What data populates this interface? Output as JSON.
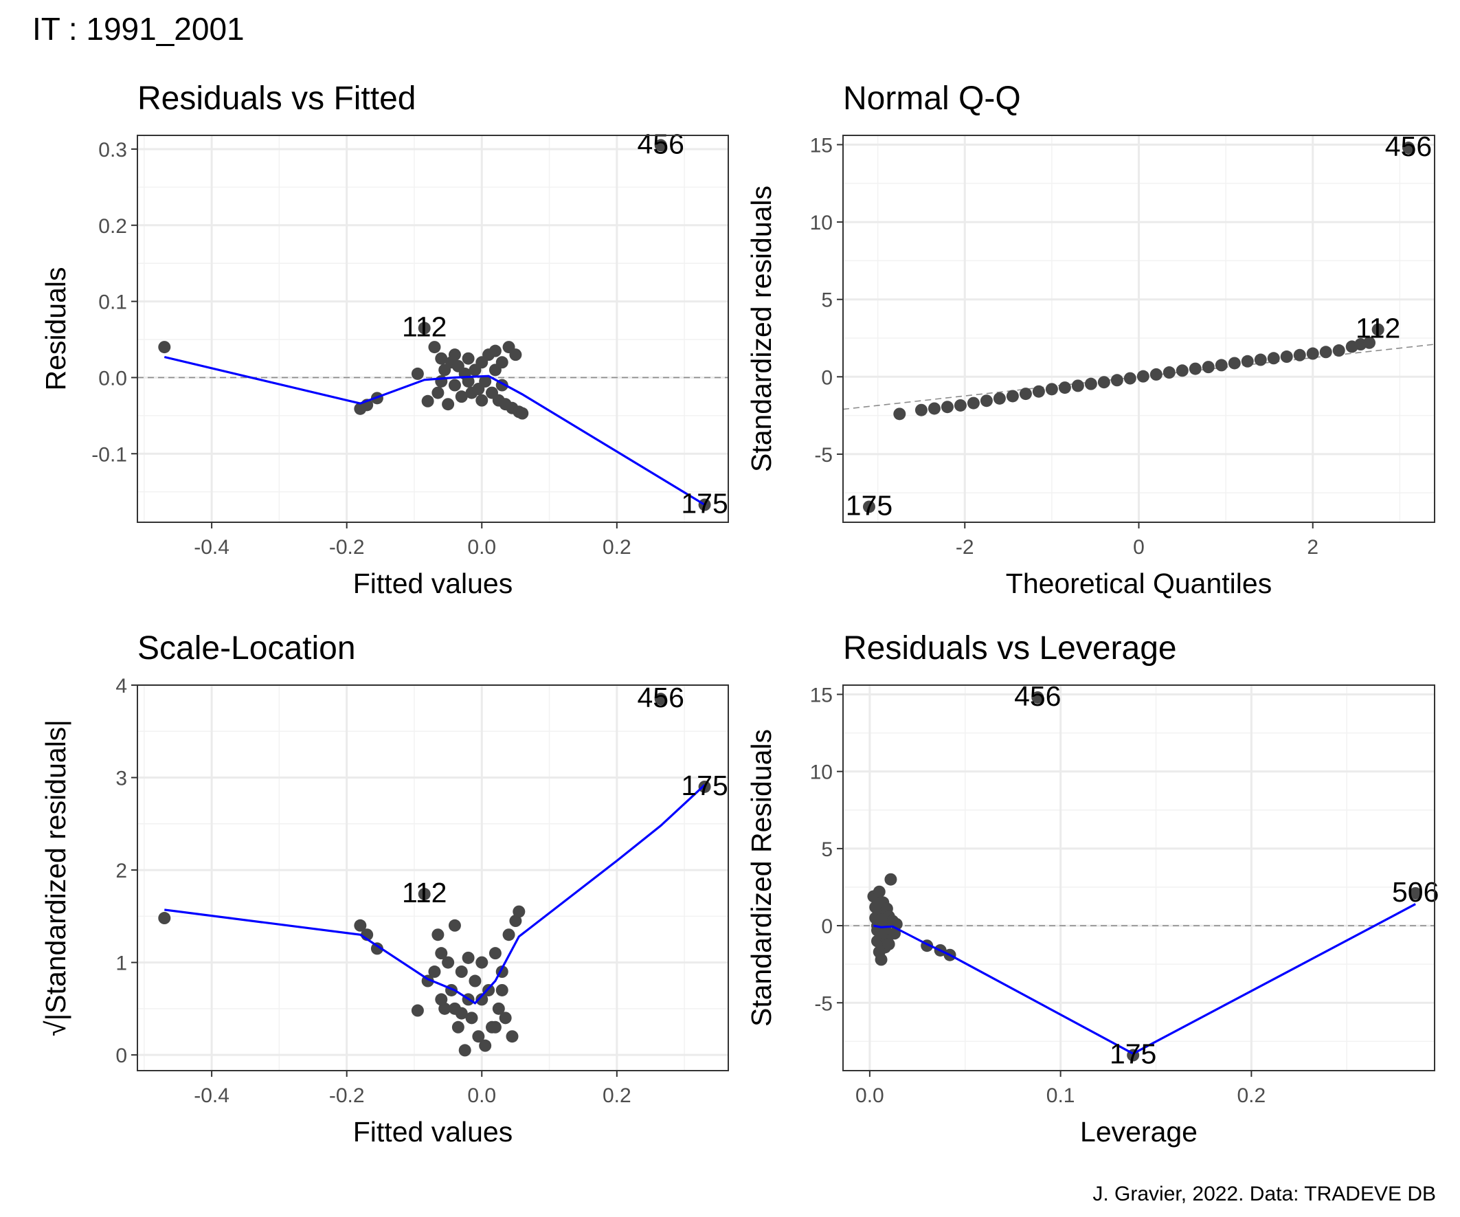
{
  "figure": {
    "title": "IT : 1991_2001",
    "caption": "J. Gravier, 2022. Data: TRADEVE DB"
  },
  "chart_data": [
    {
      "type": "scatter",
      "title": "Residuals vs Fitted",
      "xlabel": "Fitted values",
      "ylabel": "Residuals",
      "xlim": [
        -0.51,
        0.365
      ],
      "ylim": [
        -0.19,
        0.318
      ],
      "xticks": [
        -0.4,
        -0.2,
        0.0,
        0.2
      ],
      "xtick_labels": [
        "-0.4",
        "-0.2",
        "0.0",
        "0.2"
      ],
      "yticks": [
        -0.1,
        0.0,
        0.1,
        0.2,
        0.3
      ],
      "ytick_labels": [
        "-0.1",
        "0.0",
        "0.1",
        "0.2",
        "0.3"
      ],
      "hline": 0,
      "points": [
        [
          -0.47,
          0.04
        ],
        [
          -0.18,
          -0.041
        ],
        [
          -0.17,
          -0.036
        ],
        [
          -0.155,
          -0.027
        ],
        [
          -0.095,
          0.005
        ],
        [
          -0.085,
          0.065
        ],
        [
          -0.08,
          -0.031
        ],
        [
          -0.07,
          0.04
        ],
        [
          -0.065,
          -0.02
        ],
        [
          -0.06,
          0.025
        ],
        [
          -0.055,
          0.01
        ],
        [
          -0.05,
          -0.035
        ],
        [
          -0.045,
          0.02
        ],
        [
          -0.04,
          -0.01
        ],
        [
          -0.035,
          0.015
        ],
        [
          -0.03,
          -0.025
        ],
        [
          -0.025,
          0.005
        ],
        [
          -0.02,
          0.025
        ],
        [
          -0.015,
          -0.02
        ],
        [
          -0.01,
          0.01
        ],
        [
          -0.005,
          -0.015
        ],
        [
          0.0,
          0.02
        ],
        [
          0.005,
          -0.005
        ],
        [
          0.01,
          0.03
        ],
        [
          0.015,
          -0.02
        ],
        [
          0.02,
          0.01
        ],
        [
          0.025,
          -0.03
        ],
        [
          0.03,
          0.02
        ],
        [
          0.035,
          -0.035
        ],
        [
          0.04,
          0.04
        ],
        [
          0.045,
          -0.04
        ],
        [
          0.05,
          0.03
        ],
        [
          0.055,
          -0.045
        ],
        [
          0.06,
          -0.047
        ],
        [
          -0.06,
          -0.005
        ],
        [
          -0.04,
          0.03
        ],
        [
          0.0,
          -0.03
        ],
        [
          0.02,
          0.035
        ],
        [
          -0.02,
          -0.005
        ],
        [
          0.03,
          -0.01
        ],
        [
          0.265,
          0.305
        ],
        [
          0.33,
          -0.167
        ]
      ],
      "smooth": [
        [
          -0.47,
          0.027
        ],
        [
          -0.18,
          -0.034
        ],
        [
          -0.085,
          -0.003
        ],
        [
          -0.04,
          0.0
        ],
        [
          0.01,
          0.002
        ],
        [
          0.06,
          -0.022
        ],
        [
          0.33,
          -0.167
        ]
      ],
      "labels": [
        {
          "x": 0.265,
          "y": 0.305,
          "text": "456"
        },
        {
          "x": -0.085,
          "y": 0.065,
          "text": "112"
        },
        {
          "x": 0.33,
          "y": -0.167,
          "text": "175"
        }
      ]
    },
    {
      "type": "scatter",
      "title": "Normal Q-Q",
      "xlabel": "Theoretical Quantiles",
      "ylabel": "Standardized residuals",
      "xlim": [
        -3.4,
        3.4
      ],
      "ylim": [
        -9.4,
        15.6
      ],
      "xticks": [
        -2,
        0,
        2
      ],
      "xtick_labels": [
        "-2",
        "0",
        "2"
      ],
      "yticks": [
        -5,
        0,
        5,
        10,
        15
      ],
      "ytick_labels": [
        "-5",
        "0",
        "5",
        "10",
        "15"
      ],
      "reference_line": [
        [
          -3.4,
          -2.1
        ],
        [
          3.4,
          2.1
        ]
      ],
      "points": [
        [
          -3.1,
          -8.4
        ],
        [
          -2.75,
          -2.4
        ],
        [
          -2.5,
          -2.15
        ],
        [
          -2.35,
          -2.05
        ],
        [
          -2.2,
          -1.95
        ],
        [
          -2.05,
          -1.85
        ],
        [
          -1.9,
          -1.7
        ],
        [
          -1.75,
          -1.55
        ],
        [
          -1.6,
          -1.4
        ],
        [
          -1.45,
          -1.25
        ],
        [
          -1.3,
          -1.1
        ],
        [
          -1.15,
          -0.95
        ],
        [
          -1.0,
          -0.8
        ],
        [
          -0.85,
          -0.7
        ],
        [
          -0.7,
          -0.58
        ],
        [
          -0.55,
          -0.46
        ],
        [
          -0.4,
          -0.35
        ],
        [
          -0.25,
          -0.22
        ],
        [
          -0.1,
          -0.1
        ],
        [
          0.05,
          0.03
        ],
        [
          0.2,
          0.15
        ],
        [
          0.35,
          0.28
        ],
        [
          0.5,
          0.4
        ],
        [
          0.65,
          0.52
        ],
        [
          0.8,
          0.63
        ],
        [
          0.95,
          0.75
        ],
        [
          1.1,
          0.88
        ],
        [
          1.25,
          1.0
        ],
        [
          1.4,
          1.1
        ],
        [
          1.55,
          1.2
        ],
        [
          1.7,
          1.3
        ],
        [
          1.85,
          1.4
        ],
        [
          2.0,
          1.5
        ],
        [
          2.15,
          1.6
        ],
        [
          2.3,
          1.7
        ],
        [
          2.45,
          1.95
        ],
        [
          2.55,
          2.1
        ],
        [
          2.65,
          2.2
        ],
        [
          2.75,
          3.05
        ],
        [
          3.1,
          14.8
        ]
      ],
      "labels": [
        {
          "x": 3.1,
          "y": 14.8,
          "text": "456"
        },
        {
          "x": 2.75,
          "y": 3.05,
          "text": "112"
        },
        {
          "x": -3.1,
          "y": -8.4,
          "text": "175"
        }
      ]
    },
    {
      "type": "scatter",
      "title": "Scale-Location",
      "xlabel": "Fitted values",
      "ylabel": "√|Standardized residuals|",
      "xlim": [
        -0.51,
        0.365
      ],
      "ylim": [
        -0.17,
        4.0
      ],
      "xticks": [
        -0.4,
        -0.2,
        0.0,
        0.2
      ],
      "xtick_labels": [
        "-0.4",
        "-0.2",
        "0.0",
        "0.2"
      ],
      "yticks": [
        0,
        1,
        2,
        3,
        4
      ],
      "ytick_labels": [
        "0",
        "1",
        "2",
        "3",
        "4"
      ],
      "points": [
        [
          -0.47,
          1.48
        ],
        [
          -0.18,
          1.4
        ],
        [
          -0.17,
          1.3
        ],
        [
          -0.155,
          1.15
        ],
        [
          -0.095,
          0.48
        ],
        [
          -0.085,
          1.74
        ],
        [
          -0.08,
          0.8
        ],
        [
          -0.07,
          0.9
        ],
        [
          -0.065,
          1.3
        ],
        [
          -0.06,
          1.1
        ],
        [
          -0.055,
          0.5
        ],
        [
          -0.05,
          1.0
        ],
        [
          -0.045,
          0.7
        ],
        [
          -0.04,
          1.4
        ],
        [
          -0.035,
          0.3
        ],
        [
          -0.03,
          0.9
        ],
        [
          -0.025,
          0.05
        ],
        [
          -0.02,
          0.6
        ],
        [
          -0.015,
          0.4
        ],
        [
          -0.01,
          0.8
        ],
        [
          -0.005,
          0.2
        ],
        [
          0.0,
          1.0
        ],
        [
          0.005,
          0.1
        ],
        [
          0.01,
          0.7
        ],
        [
          0.015,
          0.3
        ],
        [
          0.02,
          1.1
        ],
        [
          0.025,
          0.5
        ],
        [
          0.03,
          0.9
        ],
        [
          0.035,
          0.4
        ],
        [
          0.04,
          1.3
        ],
        [
          0.045,
          0.2
        ],
        [
          0.05,
          1.45
        ],
        [
          0.055,
          1.55
        ],
        [
          -0.06,
          0.6
        ],
        [
          -0.04,
          0.5
        ],
        [
          0.0,
          0.6
        ],
        [
          0.02,
          0.3
        ],
        [
          -0.02,
          1.05
        ],
        [
          0.03,
          0.7
        ],
        [
          -0.03,
          0.45
        ],
        [
          0.265,
          3.85
        ],
        [
          0.33,
          2.9
        ]
      ],
      "smooth": [
        [
          -0.47,
          1.57
        ],
        [
          -0.18,
          1.3
        ],
        [
          -0.08,
          0.82
        ],
        [
          -0.04,
          0.7
        ],
        [
          -0.01,
          0.56
        ],
        [
          0.02,
          0.8
        ],
        [
          0.055,
          1.28
        ],
        [
          0.2,
          2.1
        ],
        [
          0.265,
          2.48
        ],
        [
          0.33,
          2.92
        ]
      ],
      "labels": [
        {
          "x": 0.265,
          "y": 3.85,
          "text": "456"
        },
        {
          "x": 0.33,
          "y": 2.9,
          "text": "175"
        },
        {
          "x": -0.085,
          "y": 1.74,
          "text": "112"
        }
      ]
    },
    {
      "type": "scatter",
      "title": "Residuals vs Leverage",
      "xlabel": "Leverage",
      "ylabel": "Standardized Residuals",
      "xlim": [
        -0.014,
        0.296
      ],
      "ylim": [
        -9.4,
        15.6
      ],
      "xticks": [
        0.0,
        0.1,
        0.2
      ],
      "xtick_labels": [
        "0.0",
        "0.1",
        "0.2"
      ],
      "yticks": [
        -5,
        0,
        5,
        10,
        15
      ],
      "ytick_labels": [
        "-5",
        "0",
        "5",
        "10",
        "15"
      ],
      "hline": 0,
      "points": [
        [
          0.002,
          1.9
        ],
        [
          0.003,
          1.2
        ],
        [
          0.003,
          0.5
        ],
        [
          0.004,
          -0.3
        ],
        [
          0.004,
          -1.0
        ],
        [
          0.005,
          -1.7
        ],
        [
          0.005,
          2.2
        ],
        [
          0.006,
          0.9
        ],
        [
          0.006,
          -2.2
        ],
        [
          0.007,
          1.5
        ],
        [
          0.007,
          -0.6
        ],
        [
          0.008,
          0.2
        ],
        [
          0.008,
          -1.4
        ],
        [
          0.009,
          1.1
        ],
        [
          0.009,
          -0.9
        ],
        [
          0.01,
          0.6
        ],
        [
          0.01,
          -1.2
        ],
        [
          0.011,
          3.0
        ],
        [
          0.012,
          0.3
        ],
        [
          0.013,
          -0.5
        ],
        [
          0.014,
          0.1
        ],
        [
          0.004,
          0.0
        ],
        [
          0.006,
          0.4
        ],
        [
          0.008,
          -0.2
        ],
        [
          0.03,
          -1.3
        ],
        [
          0.037,
          -1.6
        ],
        [
          0.042,
          -1.9
        ],
        [
          0.088,
          14.8
        ],
        [
          0.138,
          -8.4
        ],
        [
          0.286,
          2.1
        ]
      ],
      "smooth": [
        [
          0.002,
          0.0
        ],
        [
          0.006,
          -0.1
        ],
        [
          0.012,
          -0.05
        ],
        [
          0.03,
          -1.2
        ],
        [
          0.042,
          -1.9
        ],
        [
          0.138,
          -8.3
        ],
        [
          0.286,
          1.4
        ]
      ],
      "labels": [
        {
          "x": 0.088,
          "y": 14.8,
          "text": "456"
        },
        {
          "x": 0.138,
          "y": -8.4,
          "text": "175"
        },
        {
          "x": 0.286,
          "y": 2.1,
          "text": "506"
        }
      ]
    }
  ]
}
